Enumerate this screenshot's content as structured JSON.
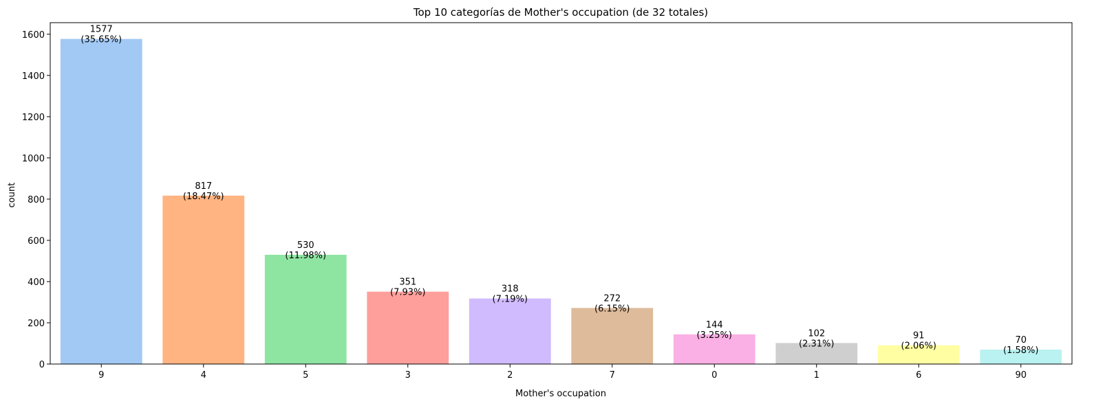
{
  "chart_data": {
    "type": "bar",
    "title": "Top 10 categorías de Mother's occupation (de 32 totales)",
    "xlabel": "Mother's occupation",
    "ylabel": "count",
    "categories": [
      "9",
      "4",
      "5",
      "3",
      "2",
      "7",
      "0",
      "1",
      "6",
      "90"
    ],
    "values": [
      1577,
      817,
      530,
      351,
      318,
      272,
      144,
      102,
      91,
      70
    ],
    "bar_labels": [
      [
        "1577",
        "(35.65%)"
      ],
      [
        "817",
        "(18.47%)"
      ],
      [
        "530",
        "(11.98%)"
      ],
      [
        "351",
        "(7.93%)"
      ],
      [
        "318",
        "(7.19%)"
      ],
      [
        "272",
        "(6.15%)"
      ],
      [
        "144",
        "(3.25%)"
      ],
      [
        "102",
        "(2.31%)"
      ],
      [
        "91",
        "(2.06%)"
      ],
      [
        "70",
        "(1.58%)"
      ]
    ],
    "colors": [
      "#a1c9f4",
      "#ffb482",
      "#8de5a1",
      "#ff9f9b",
      "#d0bbff",
      "#debb9b",
      "#fab0e4",
      "#cfcfcf",
      "#fffea3",
      "#b9f2f0"
    ],
    "ylim": [
      0,
      1656
    ],
    "yticks": [
      0,
      200,
      400,
      600,
      800,
      1000,
      1200,
      1400,
      1600
    ],
    "grid": false,
    "legend": false
  }
}
